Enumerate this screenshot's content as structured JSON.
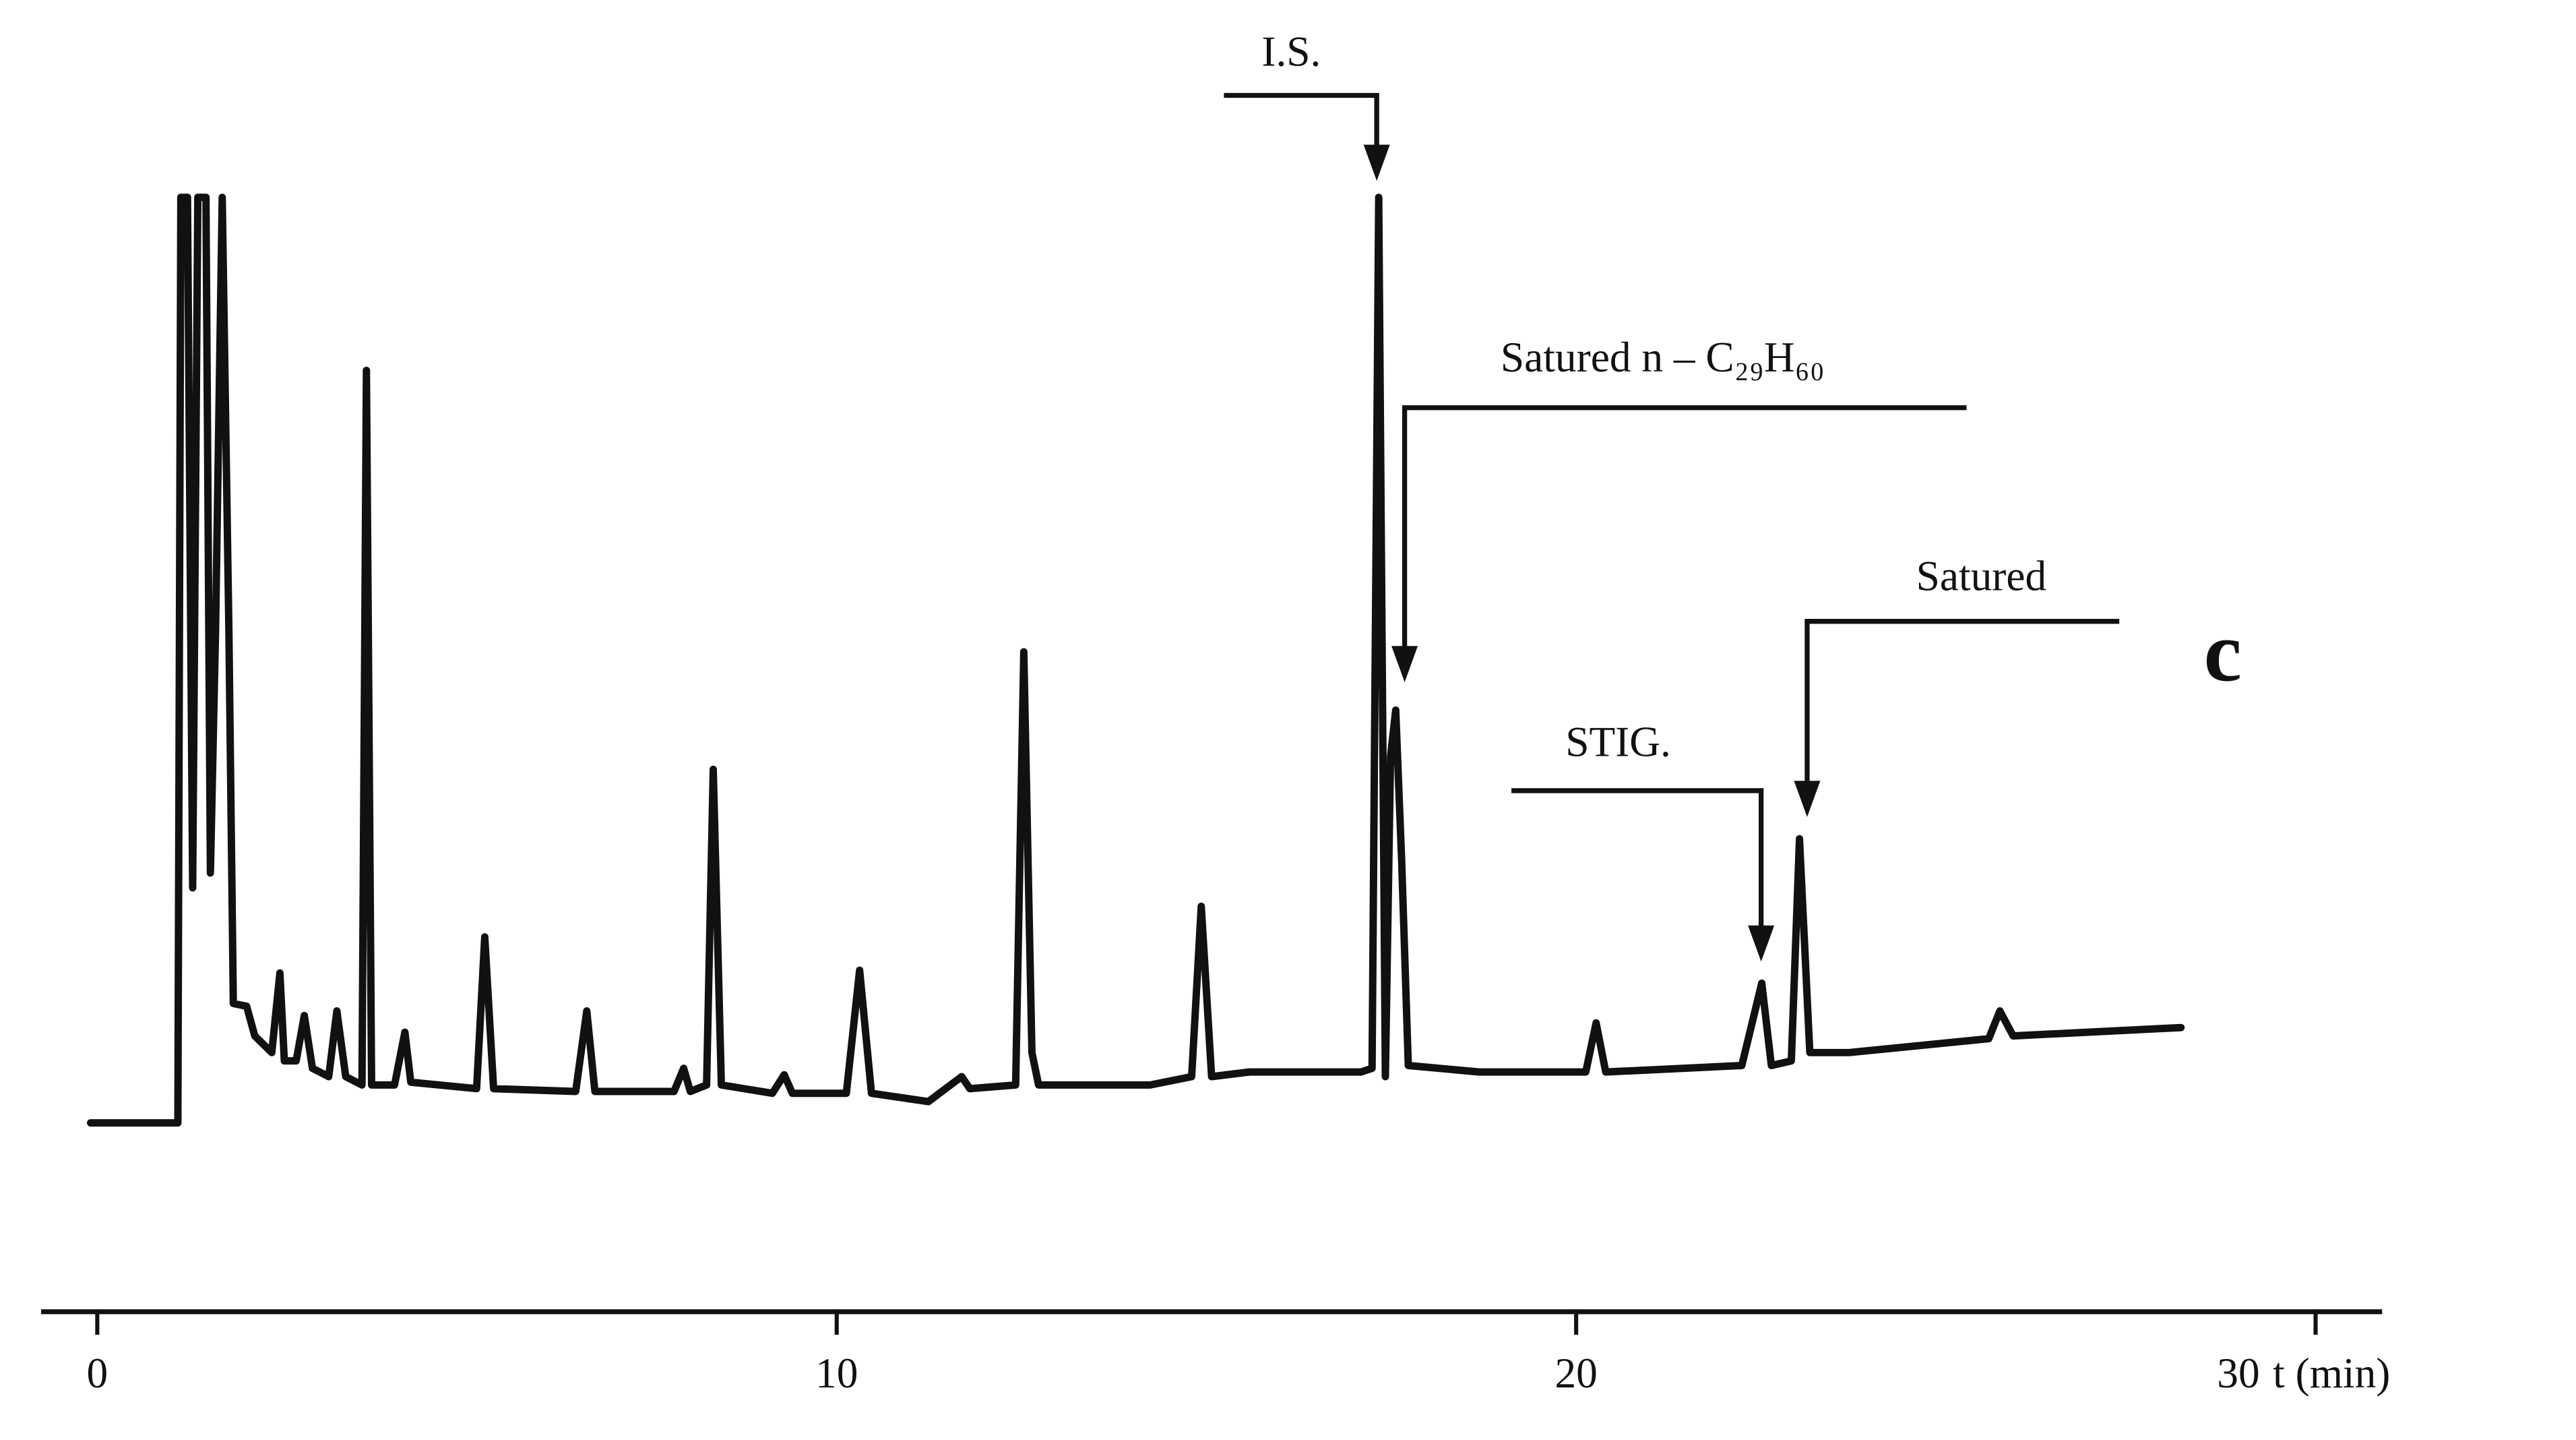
{
  "chart_data": {
    "type": "line",
    "x_label": "t (min)",
    "xlim": [
      -0.76,
      30.9
    ],
    "ylim": [
      -20.4,
      110
    ],
    "xticks": [
      0,
      10,
      20,
      30
    ],
    "color": "#111111",
    "series": [
      {
        "name": null,
        "x": [
          -0.09,
          1.09,
          1.13,
          1.22,
          1.29,
          1.36,
          1.47,
          1.53,
          1.6,
          1.69,
          1.78,
          1.84,
          2.02,
          2.13,
          2.36,
          2.47,
          2.53,
          2.69,
          2.8,
          2.91,
          3.13,
          3.24,
          3.36,
          3.58,
          3.64,
          3.71,
          4.02,
          4.16,
          4.24,
          5.13,
          5.24,
          5.36,
          6.47,
          6.62,
          6.73,
          7.8,
          7.93,
          8.02,
          8.24,
          8.33,
          8.44,
          9.13,
          9.29,
          9.4,
          10.13,
          10.31,
          10.47,
          11.24,
          11.69,
          11.8,
          12.42,
          12.53,
          12.64,
          12.73,
          14.24,
          14.8,
          14.93,
          15.07,
          15.58,
          17.09,
          17.24,
          17.33,
          17.42,
          17.49,
          17.56,
          17.64,
          17.73,
          18.69,
          20.13,
          20.27,
          20.4,
          22.24,
          22.51,
          22.64,
          22.91,
          23.02,
          23.16,
          23.69,
          25.58,
          25.73,
          25.91,
          28.18
        ],
        "values": [
          0,
          0,
          100,
          100,
          25.4,
          100,
          100,
          27.0,
          53.3,
          100,
          53.3,
          12.9,
          12.6,
          9.4,
          7.6,
          16.2,
          6.7,
          6.7,
          11.6,
          5.9,
          5.0,
          12.1,
          5.0,
          4.1,
          81.3,
          4.1,
          4.1,
          9.8,
          4.4,
          3.7,
          20.1,
          3.7,
          3.4,
          12.1,
          3.4,
          3.4,
          5.9,
          3.4,
          4.1,
          38.2,
          4.1,
          3.2,
          5.2,
          3.2,
          3.2,
          16.5,
          3.2,
          2.3,
          5.0,
          3.7,
          4.1,
          50.9,
          7.6,
          4.1,
          4.1,
          5.0,
          23.4,
          5.0,
          5.5,
          5.5,
          5.9,
          100,
          5.0,
          39.6,
          44.6,
          28.4,
          6.2,
          5.5,
          5.5,
          10.8,
          5.5,
          6.2,
          15.1,
          6.2,
          6.7,
          30.7,
          7.6,
          7.6,
          9.1,
          12.1,
          9.4,
          10.3
        ]
      }
    ],
    "annotations": [
      "I.S.",
      "Satured n – C₂₉H₆₀",
      "Satured",
      "STIG.",
      "c"
    ]
  }
}
